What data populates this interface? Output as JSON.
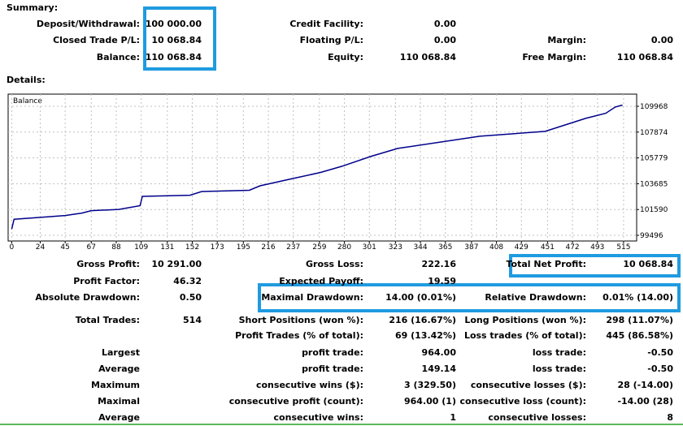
{
  "summary": {
    "title": "Summary:",
    "rows": [
      [
        {
          "label": "Deposit/Withdrawal:",
          "value": "100 000.00"
        },
        {
          "label": "Credit Facility:",
          "value": "0.00"
        },
        null
      ],
      [
        {
          "label": "Closed Trade P/L:",
          "value": "10 068.84"
        },
        {
          "label": "Floating P/L:",
          "value": "0.00"
        },
        {
          "label": "Margin:",
          "value": "0.00"
        }
      ],
      [
        {
          "label": "Balance:",
          "value": "110 068.84"
        },
        {
          "label": "Equity:",
          "value": "110 068.84"
        },
        {
          "label": "Free Margin:",
          "value": "110 068.84"
        }
      ]
    ]
  },
  "details": {
    "title": "Details:",
    "rows": [
      [
        {
          "label": "Gross Profit:",
          "value": "10 291.00"
        },
        {
          "label": "Gross Loss:",
          "value": "222.16"
        },
        {
          "label": "Total Net Profit:",
          "value": "10 068.84"
        }
      ],
      [
        {
          "label": "Profit Factor:",
          "value": "46.32"
        },
        {
          "label": "Expected Payoff:",
          "value": "19.59"
        },
        null
      ],
      [
        {
          "label": "Absolute Drawdown:",
          "value": "0.50"
        },
        {
          "label": "Maximal Drawdown:",
          "value": "14.00 (0.01%)"
        },
        {
          "label": "Relative Drawdown:",
          "value": "0.01% (14.00)"
        }
      ],
      [
        {
          "label": "Total Trades:",
          "value": "514"
        },
        {
          "label": "Short Positions (won %):",
          "value": "216 (16.67%)"
        },
        {
          "label": "Long Positions (won %):",
          "value": "298 (11.07%)"
        }
      ],
      [
        null,
        {
          "label": "Profit Trades (% of total):",
          "value": "69 (13.42%)"
        },
        {
          "label": "Loss trades (% of total):",
          "value": "445 (86.58%)"
        }
      ],
      [
        {
          "label": "Largest"
        },
        {
          "label": "profit trade:",
          "value": "964.00"
        },
        {
          "label": "loss trade:",
          "value": "-0.50"
        }
      ],
      [
        {
          "label": "Average"
        },
        {
          "label": "profit trade:",
          "value": "149.14"
        },
        {
          "label": "loss trade:",
          "value": "-0.50"
        }
      ],
      [
        {
          "label": "Maximum"
        },
        {
          "label": "consecutive wins ($):",
          "value": "3 (329.50)"
        },
        {
          "label": "consecutive losses ($):",
          "value": "28 (-14.00)"
        }
      ],
      [
        {
          "label": "Maximal"
        },
        {
          "label": "consecutive profit (count):",
          "value": "964.00 (1)"
        },
        {
          "label": "consecutive loss (count):",
          "value": "-14.00 (28)"
        }
      ],
      [
        {
          "label": "Average"
        },
        {
          "label": "consecutive wins:",
          "value": "1"
        },
        {
          "label": "consecutive losses:",
          "value": "8"
        }
      ]
    ]
  },
  "chart_data": {
    "type": "line",
    "x": [
      0,
      2,
      24,
      45,
      59,
      67,
      90,
      108,
      110,
      150,
      160,
      200,
      209,
      237,
      260,
      278,
      302,
      325,
      394,
      449,
      483,
      500,
      508,
      514
    ],
    "series": [
      {
        "name": "Balance",
        "color": "#00008b",
        "values": [
          100000,
          100800,
          100950,
          101100,
          101300,
          101500,
          101600,
          101900,
          102660,
          102750,
          103055,
          103150,
          103516,
          104110,
          104600,
          105100,
          105890,
          106550,
          107536,
          107930,
          108986,
          109400,
          109908,
          110068.84
        ]
      }
    ],
    "xlim": [
      -3,
      526
    ],
    "ylim": [
      99035,
      110956
    ],
    "xticks": [
      0,
      24,
      45,
      67,
      88,
      109,
      131,
      152,
      173,
      195,
      216,
      237,
      259,
      280,
      301,
      323,
      344,
      365,
      387,
      408,
      429,
      451,
      472,
      493,
      515
    ],
    "yticks": [
      99496,
      101590,
      103685,
      105779,
      107874,
      109968
    ],
    "grid": true
  }
}
